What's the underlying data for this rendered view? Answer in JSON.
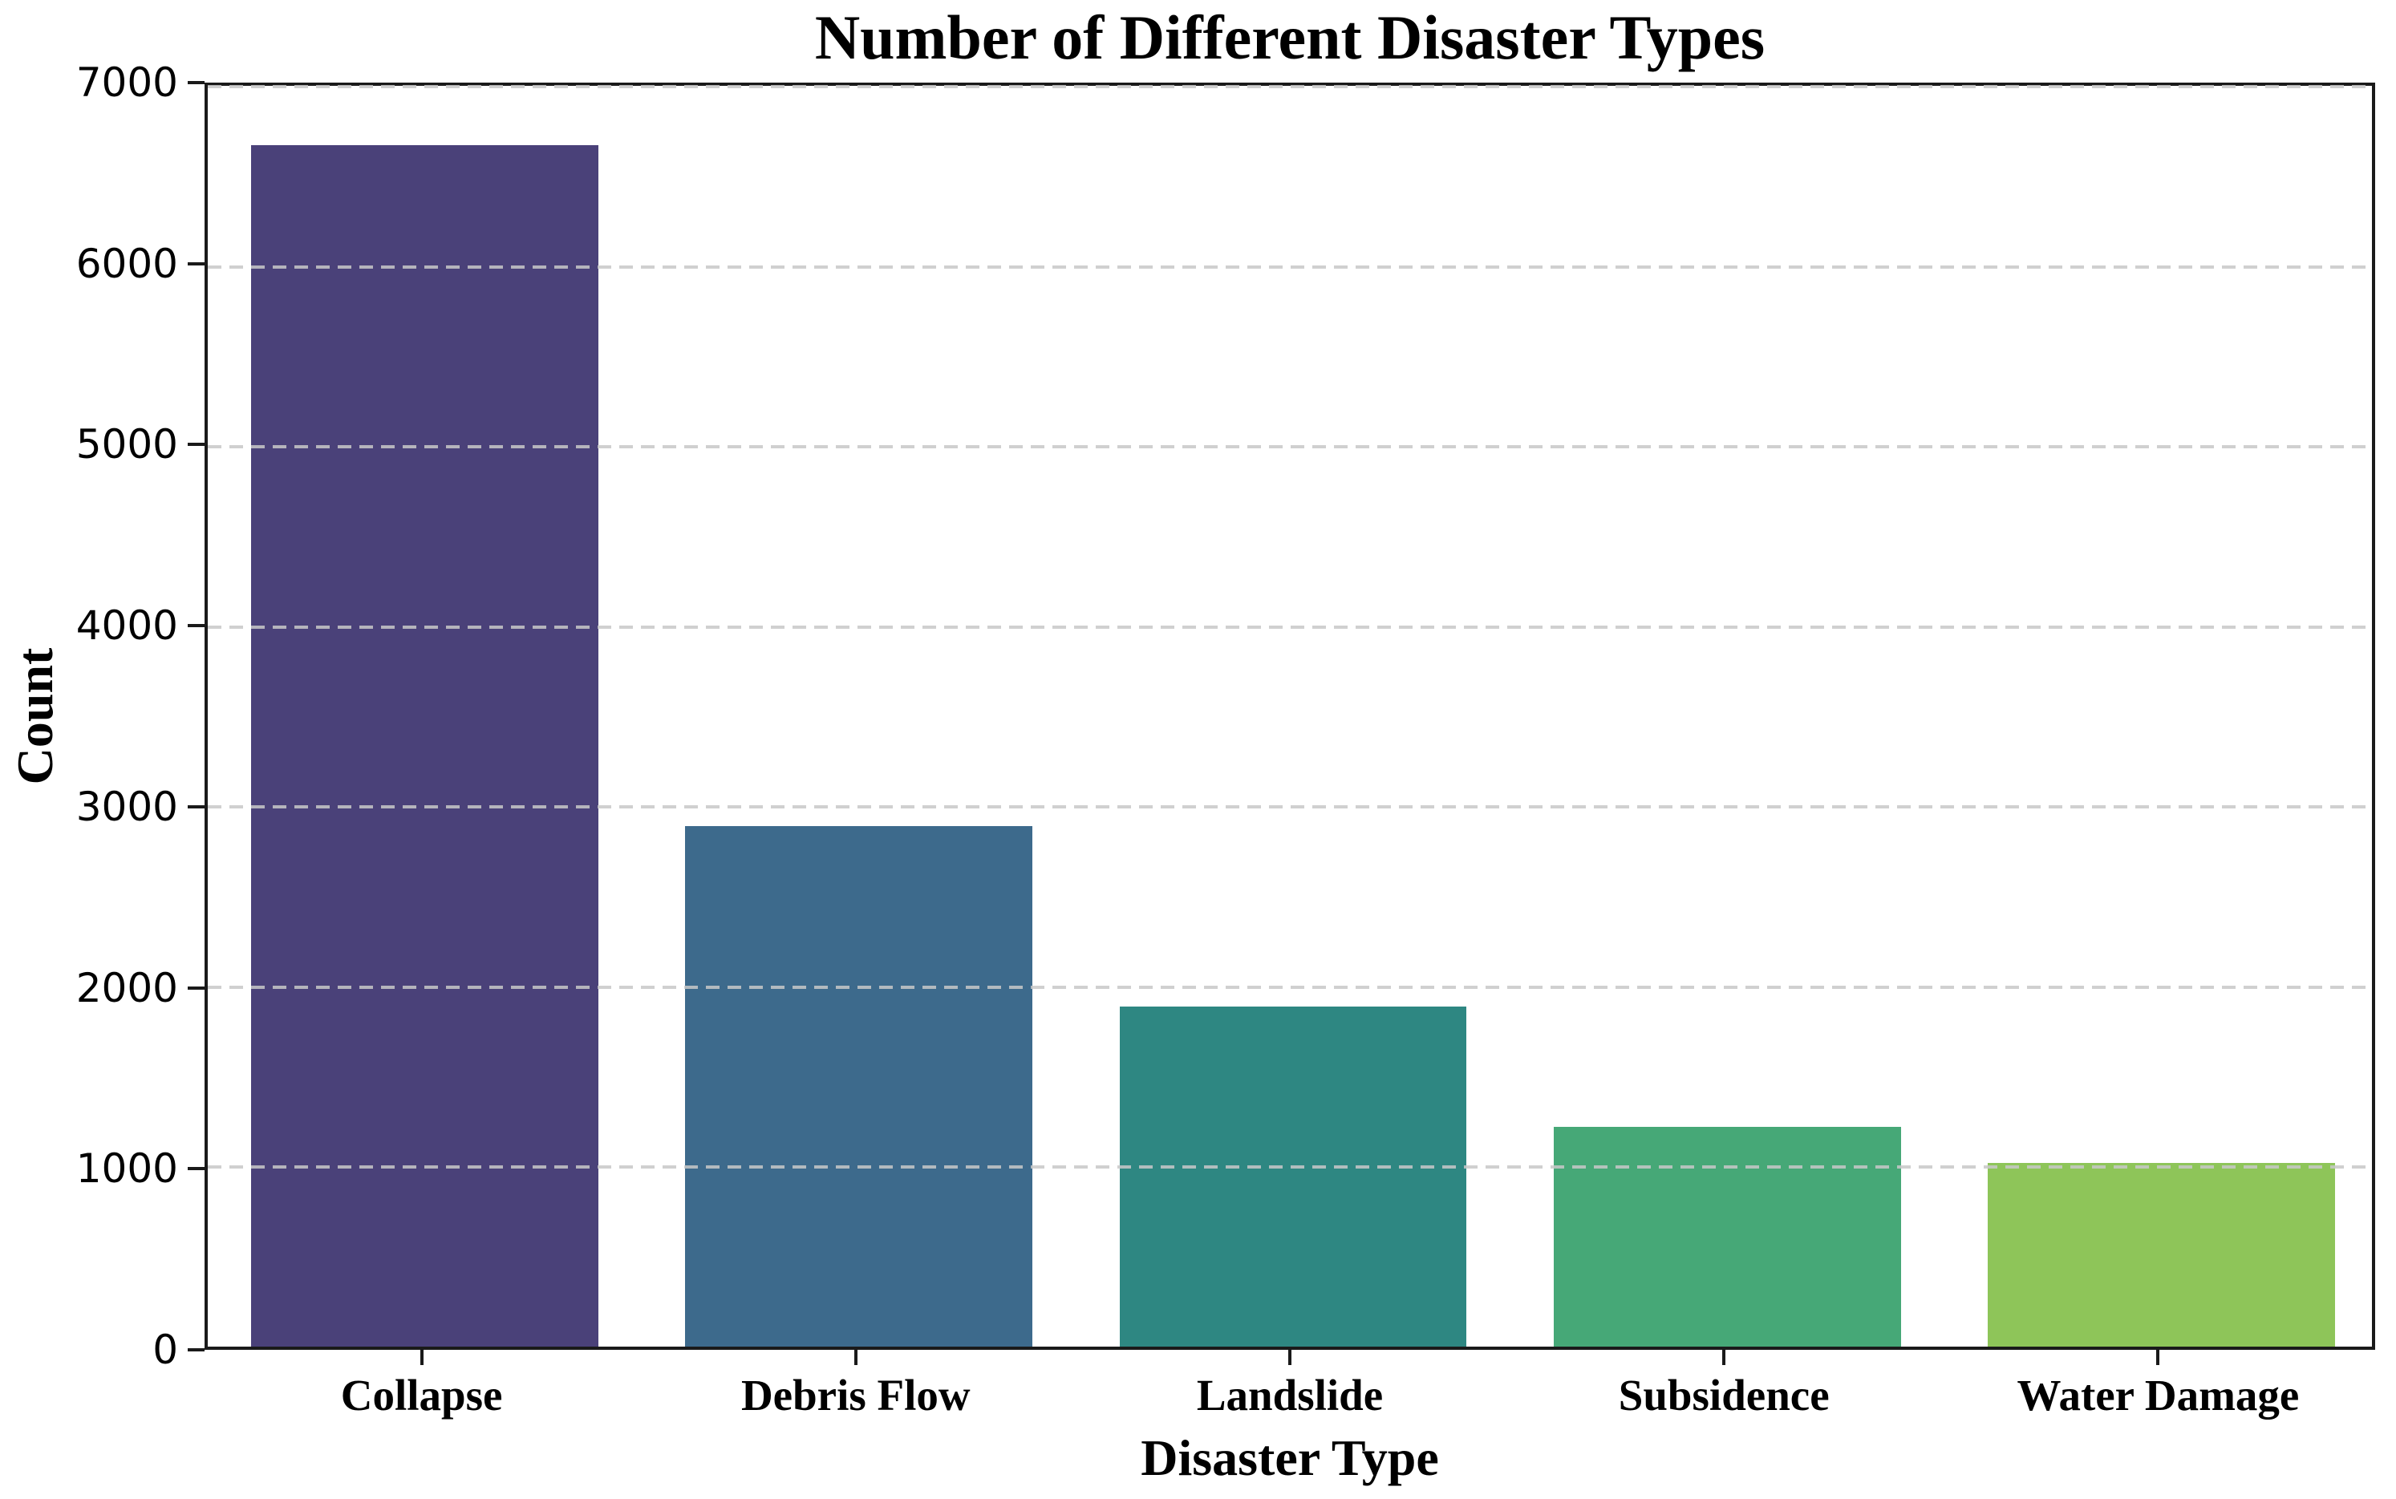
{
  "page": {
    "background_color": "#ffffff",
    "text_color": "#000000"
  },
  "chart_data": {
    "type": "bar",
    "title": "Number of Different Disaster Types",
    "xlabel": "Disaster Type",
    "ylabel": "Count",
    "categories": [
      "Collapse",
      "Debris Flow",
      "Landslide",
      "Subsidence",
      "Water Damage"
    ],
    "values": [
      6670,
      2890,
      1890,
      1220,
      1020
    ],
    "colors": [
      "#4a4179",
      "#3d6a8c",
      "#2e8782",
      "#46a877",
      "#8ec559"
    ],
    "ylim": [
      0,
      7000
    ],
    "yticks": [
      0,
      1000,
      2000,
      3000,
      4000,
      5000,
      6000,
      7000
    ],
    "grid": "horizontal-dashed",
    "grid_color": "#c8c8c8",
    "axis_color": "#1a1a1a",
    "bar_width_fraction": 0.8,
    "legend": "none"
  }
}
